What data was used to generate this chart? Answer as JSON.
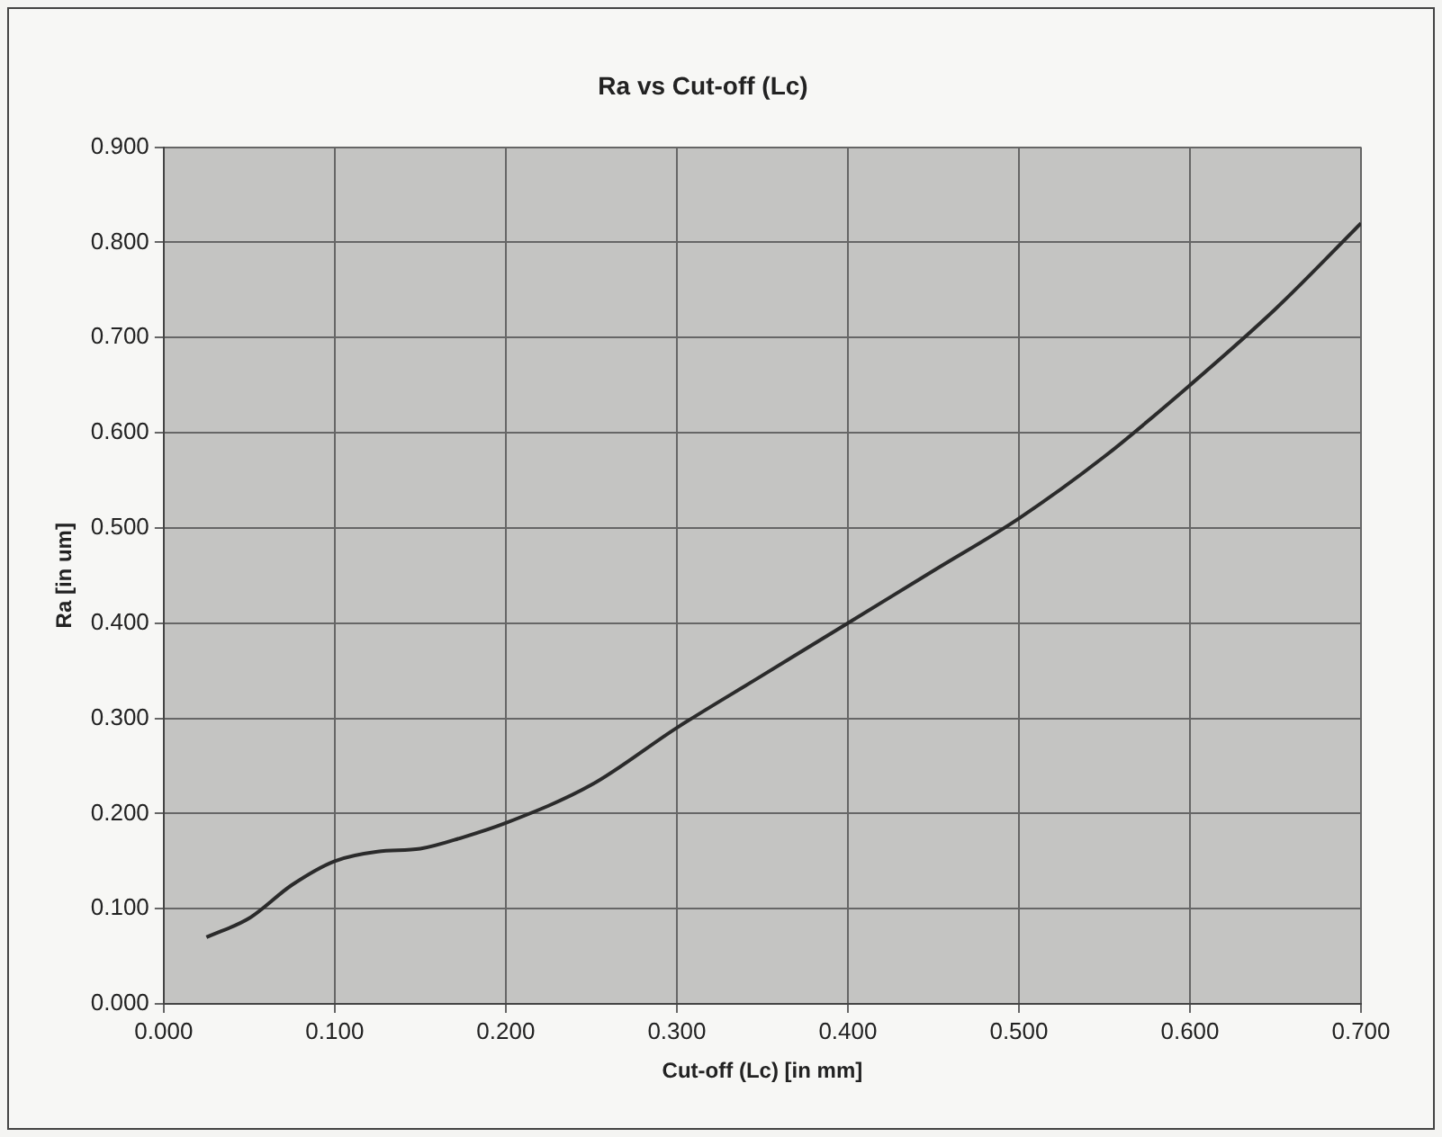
{
  "chart_data": {
    "type": "line",
    "title": "Ra vs Cut-off (Lc)",
    "xlabel": "Cut-off (Lc) [in mm]",
    "ylabel": "Ra [in um]",
    "x": [
      0.025,
      0.05,
      0.075,
      0.1,
      0.125,
      0.15,
      0.175,
      0.2,
      0.25,
      0.3,
      0.35,
      0.4,
      0.45,
      0.5,
      0.55,
      0.6,
      0.65,
      0.7
    ],
    "series": [
      {
        "color": "#2b2b2b",
        "values": [
          0.07,
          0.09,
          0.125,
          0.15,
          0.16,
          0.163,
          0.175,
          0.19,
          0.23,
          0.29,
          0.345,
          0.4,
          0.455,
          0.51,
          0.575,
          0.65,
          0.73,
          0.82
        ]
      }
    ],
    "xlim": [
      0,
      0.7
    ],
    "xticks": [
      {
        "value": 0,
        "label": "0.000"
      },
      {
        "value": 0.1,
        "label": "0.100"
      },
      {
        "value": 0.2,
        "label": "0.200"
      },
      {
        "value": 0.3,
        "label": "0.300"
      },
      {
        "value": 0.4,
        "label": "0.400"
      },
      {
        "value": 0.5,
        "label": "0.500"
      },
      {
        "value": 0.6,
        "label": "0.600"
      },
      {
        "value": 0.7,
        "label": "0.700"
      }
    ],
    "ylim": [
      0,
      0.9
    ],
    "yticks": [
      {
        "value": 0,
        "label": "0.000"
      },
      {
        "value": 0.1,
        "label": "0.100"
      },
      {
        "value": 0.2,
        "label": "0.200"
      },
      {
        "value": 0.3,
        "label": "0.300"
      },
      {
        "value": 0.4,
        "label": "0.400"
      },
      {
        "value": 0.5,
        "label": "0.500"
      },
      {
        "value": 0.6,
        "label": "0.600"
      },
      {
        "value": 0.7,
        "label": "0.700"
      },
      {
        "value": 0.8,
        "label": "0.800"
      },
      {
        "value": 0.9,
        "label": "0.900"
      }
    ],
    "grid": true,
    "legend": false,
    "marker": "none",
    "line_style": "solid"
  }
}
